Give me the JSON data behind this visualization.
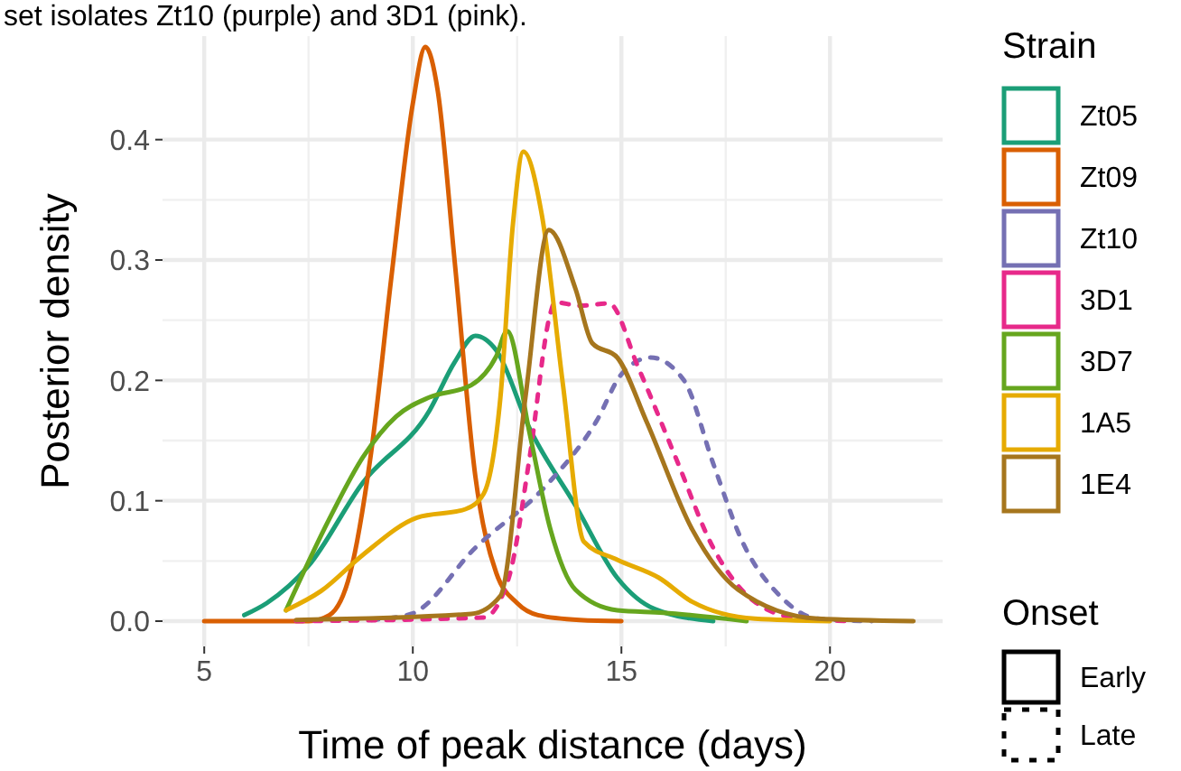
{
  "chart_data": {
    "type": "line",
    "xlabel": "Time of peak distance (days)",
    "ylabel": "Posterior density",
    "legend_title": "Strain",
    "legend": "right",
    "grid": true,
    "annotations": [
      "set isolates Zt10 (purple) and 3D1 (pink).",
      "Onset",
      "Early",
      "Late"
    ],
    "xlim": [
      4.0,
      22.7
    ],
    "ylim": [
      -0.021,
      0.486
    ],
    "xticks": [
      5,
      10,
      15,
      20
    ],
    "yticks": [
      {
        "value": 0,
        "label": "0.0"
      },
      {
        "value": 0.1,
        "label": "0.1"
      },
      {
        "value": 0.2,
        "label": "0.2"
      },
      {
        "value": 0.3,
        "label": "0.3"
      },
      {
        "value": 0.4,
        "label": "0.4"
      }
    ],
    "series": [
      {
        "name": "Zt05",
        "color": "#1b9e77",
        "line_style": "solid",
        "x": [
          5.96,
          6.5,
          7.5,
          8.8,
          10.4,
          11.0,
          11.5,
          12.0,
          12.8,
          13.9,
          14.9,
          15.8,
          17.2
        ],
        "values": [
          0.005,
          0.015,
          0.046,
          0.115,
          0.175,
          0.215,
          0.237,
          0.225,
          0.16,
          0.096,
          0.036,
          0.01,
          0
        ]
      },
      {
        "name": "Zt09",
        "color": "#d95f02",
        "line_style": "solid",
        "x": [
          5,
          7.5,
          8,
          8.5,
          9,
          9.5,
          10,
          10.3,
          10.6,
          11,
          11.5,
          12,
          12.5,
          13,
          14,
          15
        ],
        "values": [
          0,
          0,
          0.005,
          0.04,
          0.14,
          0.29,
          0.43,
          0.477,
          0.44,
          0.3,
          0.12,
          0.04,
          0.015,
          0.005,
          0.001,
          0
        ]
      },
      {
        "name": "Zt10",
        "color": "#7570b3",
        "line_style": "dashed",
        "x": [
          9.0,
          9.96,
          11.5,
          13.26,
          14.4,
          15.0,
          15.7,
          16.5,
          17.2,
          17.9,
          18.8,
          19.7,
          21.0
        ],
        "values": [
          0.001,
          0.006,
          0.061,
          0.115,
          0.166,
          0.205,
          0.219,
          0.2,
          0.131,
          0.066,
          0.021,
          0.002,
          0
        ]
      },
      {
        "name": "3D1",
        "color": "#e7298a",
        "line_style": "dashed",
        "x": [
          7.2,
          11.7,
          12.3,
          12.8,
          13.3,
          13.4,
          14.0,
          14.7,
          15.4,
          16.3,
          17.2,
          18.2,
          19.3,
          20.5
        ],
        "values": [
          0,
          0.003,
          0.036,
          0.136,
          0.256,
          0.265,
          0.262,
          0.264,
          0.211,
          0.136,
          0.061,
          0.016,
          0.002,
          0
        ]
      },
      {
        "name": "3D7",
        "color": "#66a61e",
        "line_style": "solid",
        "x": [
          6.96,
          8.0,
          8.8,
          9.6,
          10.4,
          11.4,
          12.0,
          12.26,
          12.8,
          13.3,
          13.9,
          14.9,
          16.0,
          18.0
        ],
        "values": [
          0.009,
          0.085,
          0.136,
          0.17,
          0.186,
          0.196,
          0.22,
          0.241,
          0.156,
          0.076,
          0.026,
          0.009,
          0.007,
          0
        ]
      },
      {
        "name": "1A5",
        "color": "#e6ab02",
        "line_style": "solid",
        "x": [
          6.96,
          7.8,
          8.8,
          10.1,
          11.26,
          11.7,
          12.1,
          12.4,
          12.65,
          13.1,
          13.6,
          14.1,
          14.9,
          15.9,
          16.7,
          18.2,
          20.0
        ],
        "values": [
          0.009,
          0.025,
          0.055,
          0.086,
          0.093,
          0.106,
          0.186,
          0.33,
          0.39,
          0.336,
          0.196,
          0.066,
          0.051,
          0.036,
          0.016,
          0.002,
          0
        ]
      },
      {
        "name": "1E4",
        "color": "#a6761d",
        "line_style": "solid",
        "x": [
          7.2,
          11.4,
          12.1,
          12.7,
          13.26,
          13.9,
          14.3,
          14.9,
          15.6,
          16.7,
          17.8,
          19.7,
          22.0
        ],
        "values": [
          0.001,
          0.006,
          0.021,
          0.186,
          0.325,
          0.276,
          0.231,
          0.219,
          0.166,
          0.076,
          0.026,
          0.002,
          0
        ]
      }
    ]
  }
}
